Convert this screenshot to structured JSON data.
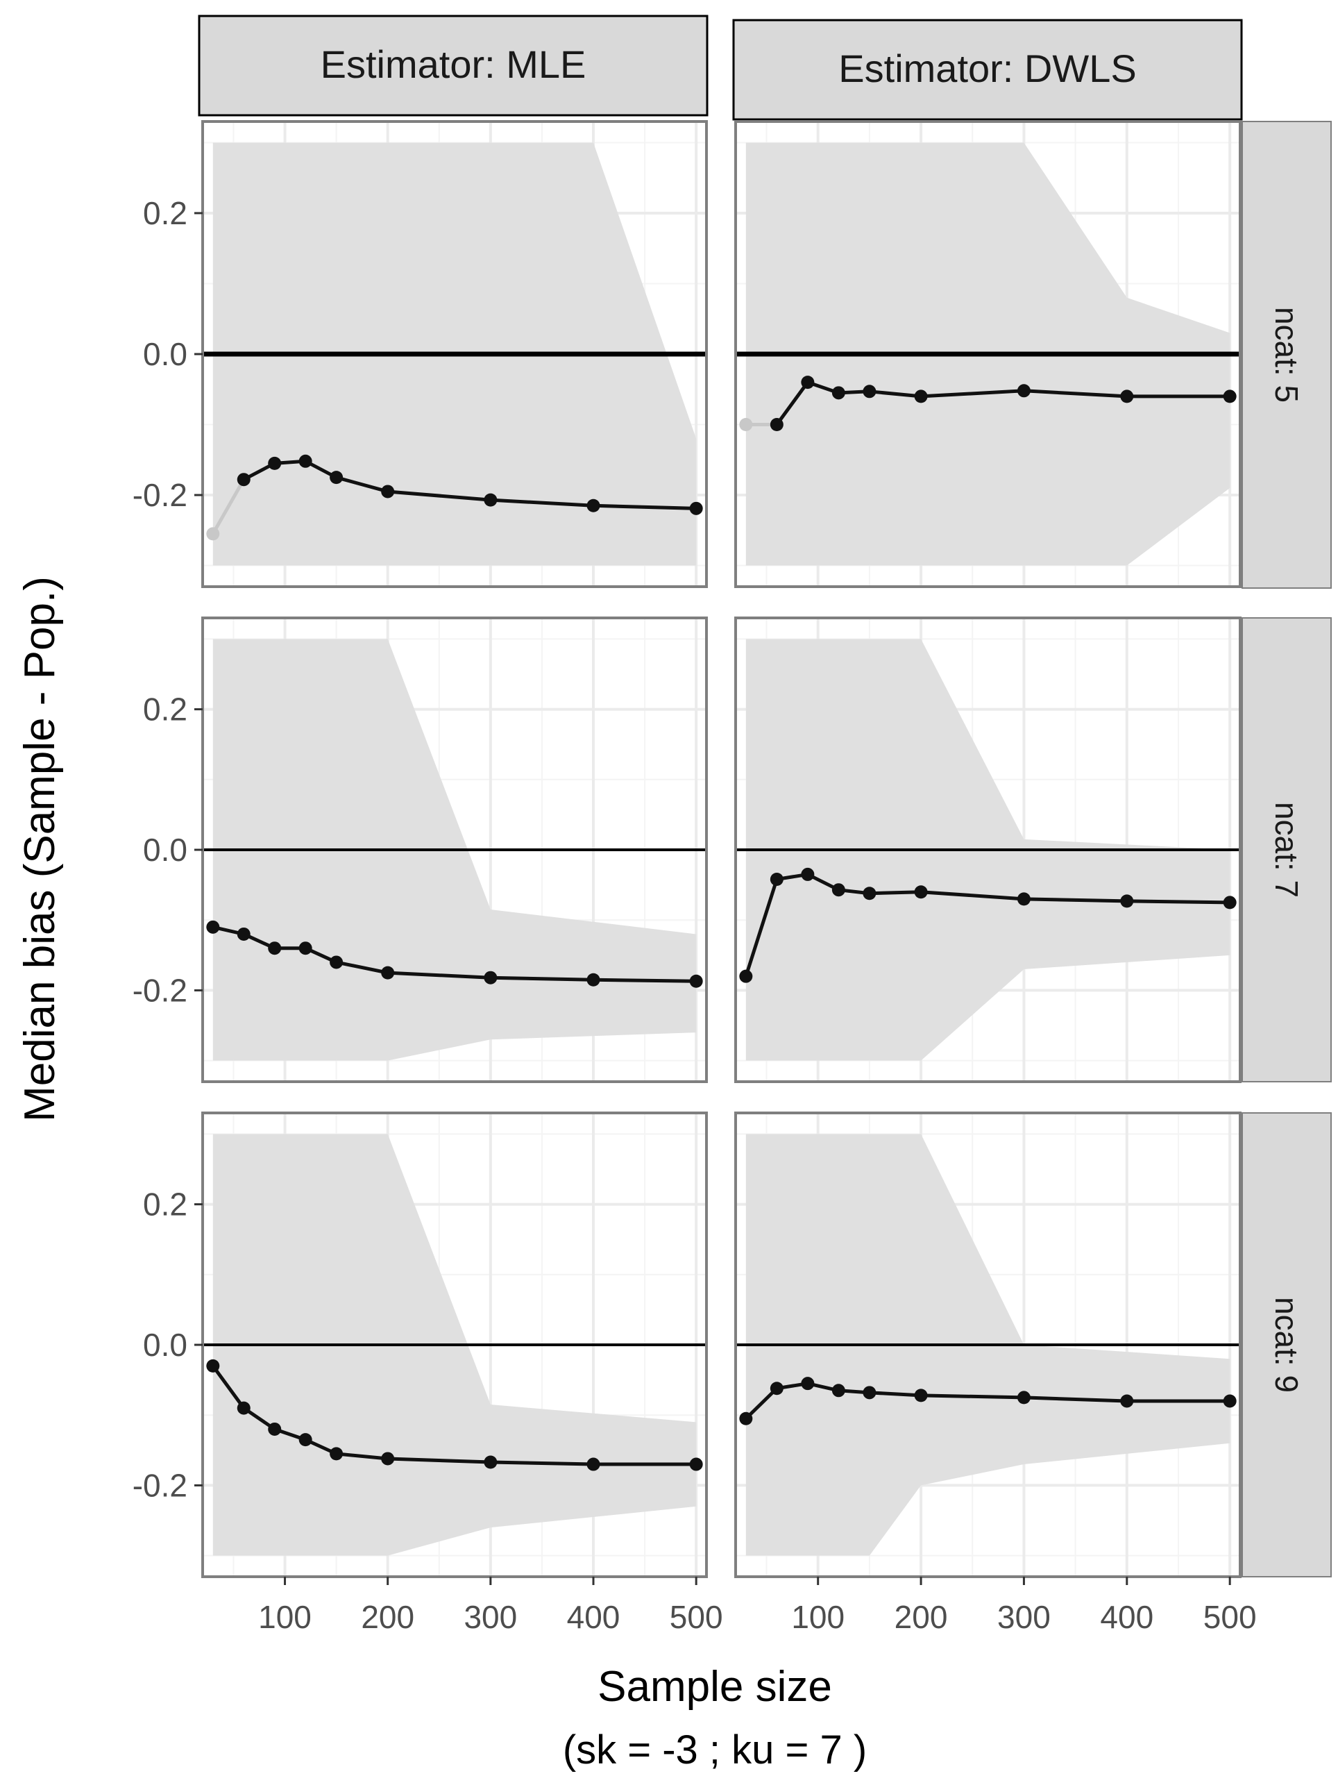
{
  "chart_data": {
    "type": "line",
    "layout": "facet grid: columns = estimator, rows = ncat; shaded band = range of sample bias",
    "columns": [
      "Estimator: MLE",
      "Estimator: DWLS"
    ],
    "rows": [
      "ncat: 5",
      "ncat: 7",
      "ncat: 9"
    ],
    "xlabel": "Sample size",
    "xlabel_sub": "(sk =  -3 ; ku =  7 )",
    "ylabel": "Median bias (Sample - Pop.)",
    "xlim": [
      20,
      510
    ],
    "ylim": [
      -0.33,
      0.33
    ],
    "x_ticks": [
      100,
      200,
      300,
      400,
      500
    ],
    "x_tick_labels": [
      "100",
      "200",
      "300",
      "400",
      "500"
    ],
    "y_ticks": [
      0.2,
      0.0,
      -0.2
    ],
    "y_tick_labels": [
      "0.2",
      "0.0",
      "-0.2"
    ],
    "reference_line": 0,
    "x": [
      30,
      60,
      90,
      120,
      150,
      200,
      300,
      400,
      500
    ],
    "panels": [
      {
        "column": "Estimator: MLE",
        "row": "ncat: 5",
        "median_bias": [
          -0.255,
          -0.178,
          -0.155,
          -0.152,
          -0.175,
          -0.195,
          -0.207,
          -0.215,
          -0.219
        ],
        "faded_points": [
          0
        ],
        "band": {
          "x": [
            30,
            300,
            400,
            500
          ],
          "upper": [
            0.3,
            0.3,
            0.3,
            -0.12
          ],
          "lower": [
            -0.3,
            -0.3,
            -0.3,
            -0.3
          ]
        }
      },
      {
        "column": "Estimator: DWLS",
        "row": "ncat: 5",
        "median_bias": [
          -0.1,
          -0.1,
          -0.04,
          -0.055,
          -0.053,
          -0.06,
          -0.052,
          -0.06,
          -0.06
        ],
        "faded_points": [
          0
        ],
        "band": {
          "x": [
            30,
            300,
            400,
            500
          ],
          "upper": [
            0.3,
            0.3,
            0.08,
            0.03
          ],
          "lower": [
            -0.3,
            -0.3,
            -0.3,
            -0.19
          ]
        }
      },
      {
        "column": "Estimator: MLE",
        "row": "ncat: 7",
        "median_bias": [
          -0.11,
          -0.12,
          -0.14,
          -0.14,
          -0.16,
          -0.175,
          -0.182,
          -0.185,
          -0.187
        ],
        "faded_points": [],
        "band": {
          "x": [
            30,
            200,
            300,
            500
          ],
          "upper": [
            0.3,
            0.3,
            -0.085,
            -0.12
          ],
          "lower": [
            -0.3,
            -0.3,
            -0.27,
            -0.26
          ]
        }
      },
      {
        "column": "Estimator: DWLS",
        "row": "ncat: 7",
        "median_bias": [
          -0.18,
          -0.042,
          -0.035,
          -0.057,
          -0.062,
          -0.06,
          -0.07,
          -0.073,
          -0.075
        ],
        "faded_points": [],
        "band": {
          "x": [
            30,
            200,
            300,
            500
          ],
          "upper": [
            0.3,
            0.3,
            0.015,
            0.0
          ],
          "lower": [
            -0.3,
            -0.3,
            -0.17,
            -0.15
          ]
        }
      },
      {
        "column": "Estimator: MLE",
        "row": "ncat: 9",
        "median_bias": [
          -0.03,
          -0.09,
          -0.12,
          -0.135,
          -0.155,
          -0.162,
          -0.167,
          -0.17,
          -0.17
        ],
        "faded_points": [],
        "band": {
          "x": [
            30,
            200,
            300,
            500
          ],
          "upper": [
            0.3,
            0.3,
            -0.085,
            -0.11
          ],
          "lower": [
            -0.3,
            -0.3,
            -0.26,
            -0.23
          ]
        }
      },
      {
        "column": "Estimator: DWLS",
        "row": "ncat: 9",
        "median_bias": [
          -0.105,
          -0.062,
          -0.055,
          -0.065,
          -0.068,
          -0.072,
          -0.075,
          -0.08,
          -0.08
        ],
        "faded_points": [],
        "band": {
          "x": [
            30,
            150,
            200,
            300,
            500
          ],
          "upper": [
            0.3,
            0.3,
            0.3,
            0.0,
            -0.02
          ],
          "lower": [
            -0.3,
            -0.3,
            -0.2,
            -0.17,
            -0.14
          ]
        }
      }
    ]
  },
  "colors": {
    "band": "#e0e0e0",
    "grid_major": "#ebebeb",
    "grid_minor": "#f4f4f4",
    "strip_fill": "#d9d9d9",
    "line": "#111111",
    "faded": "#c8c8c8",
    "panel_border": "#7f7f7f"
  }
}
